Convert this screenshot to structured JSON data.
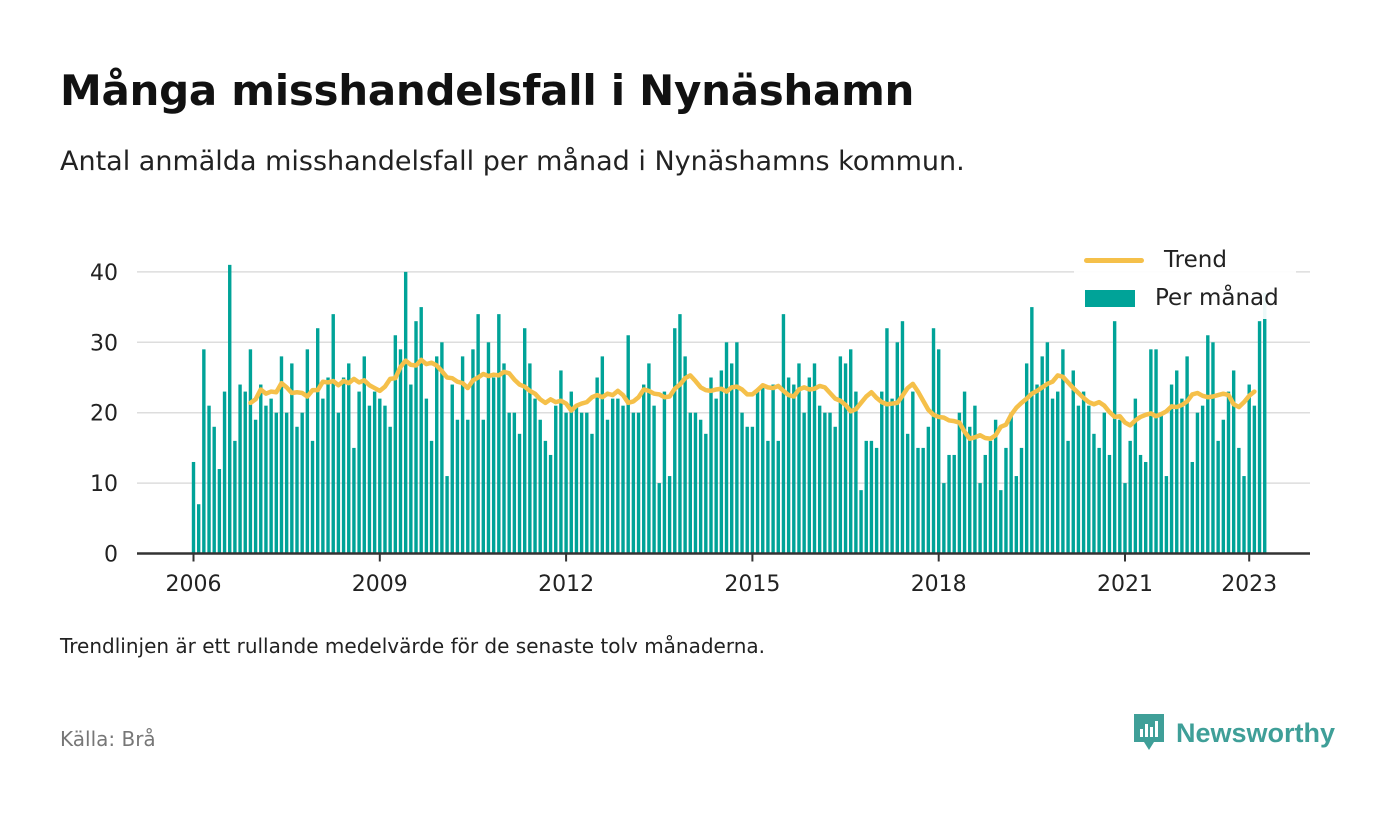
{
  "title": "Många misshandelsfall i Nynäshamn",
  "subtitle": "Antal anmälda misshandelsfall per månad i Nynäshamns kommun.",
  "note": "Trendlinjen är ett rullande medelvärde för de senaste tolv månaderna.",
  "source": "Källa: Brå",
  "brand": "Newsworthy",
  "colors": {
    "bars": "#00a398",
    "trend": "#f5c04a",
    "grid": "#dddddd",
    "axis": "#333333",
    "brand": "#3f9f98"
  },
  "legend": {
    "trend": "Trend",
    "bars": "Per månad",
    "position": "top-right"
  },
  "chart_data": {
    "type": "bar",
    "start": "2006-01",
    "x_ticks": [
      "2006",
      "2009",
      "2012",
      "2015",
      "2018",
      "2021",
      "2023"
    ],
    "y_ticks": [
      0,
      10,
      20,
      30,
      40
    ],
    "ylim": [
      0,
      44
    ],
    "grid": true,
    "series": [
      {
        "name": "Per månad",
        "kind": "bar",
        "values": [
          13,
          7,
          29,
          21,
          18,
          12,
          23,
          41,
          16,
          24,
          23,
          29,
          19,
          24,
          21,
          22,
          20,
          28,
          20,
          27,
          18,
          20,
          29,
          16,
          32,
          22,
          25,
          34,
          20,
          25,
          27,
          15,
          23,
          28,
          21,
          23,
          22,
          21,
          18,
          31,
          29,
          40,
          24,
          33,
          35,
          22,
          16,
          28,
          30,
          11,
          24,
          19,
          28,
          19,
          29,
          34,
          19,
          30,
          25,
          34,
          27,
          20,
          20,
          17,
          32,
          27,
          22,
          19,
          16,
          14,
          21,
          26,
          20,
          23,
          21,
          20,
          20,
          17,
          25,
          28,
          19,
          22,
          22,
          21,
          31,
          20,
          20,
          24,
          27,
          21,
          10,
          23,
          11,
          32,
          34,
          28,
          20,
          20,
          19,
          17,
          25,
          22,
          26,
          30,
          27,
          30,
          20,
          18,
          18,
          23,
          24,
          16,
          24,
          16,
          34,
          25,
          24,
          27,
          20,
          25,
          27,
          21,
          20,
          20,
          18,
          28,
          27,
          29,
          23,
          9,
          16,
          16,
          15,
          23,
          32,
          22,
          30,
          33,
          17,
          23,
          15,
          15,
          18,
          32,
          29,
          10,
          14,
          14,
          20,
          23,
          18,
          21,
          10,
          14,
          16,
          19,
          9,
          15,
          20,
          11,
          15,
          27,
          35,
          24,
          28,
          30,
          22,
          23,
          29,
          16,
          26,
          21,
          23,
          21,
          17,
          15,
          20,
          14,
          33,
          19,
          10,
          16,
          22,
          14,
          13,
          29,
          29,
          20,
          11,
          24,
          26,
          22,
          28,
          13,
          20,
          21,
          31,
          30,
          16,
          19,
          23,
          26,
          15,
          11,
          24,
          21,
          33,
          37
        ]
      },
      {
        "name": "Trend",
        "kind": "line",
        "values": [
          null,
          null,
          null,
          null,
          null,
          null,
          null,
          null,
          null,
          null,
          null,
          21.4,
          21.9,
          23.3,
          22.7,
          23,
          22.9,
          24.2,
          23.6,
          22.8,
          22.9,
          22.8,
          22.3,
          23.2,
          23.2,
          24.4,
          24.3,
          24.5,
          23.9,
          24.5,
          24.2,
          24.8,
          24.3,
          24.6,
          23.9,
          23.5,
          23.1,
          23.7,
          24.8,
          24.9,
          26.5,
          27.4,
          26.8,
          26.7,
          27.5,
          26.9,
          27.1,
          26.7,
          25.9,
          25,
          24.9,
          24.4,
          24.2,
          23.5,
          24.6,
          25,
          25.5,
          25.2,
          25.4,
          25.3,
          25.8,
          25.6,
          24.7,
          24,
          23.7,
          23.1,
          22.7,
          21.9,
          21.4,
          21.9,
          21.5,
          21.7,
          21.3,
          20.3,
          21,
          21.3,
          21.5,
          22.2,
          22.5,
          22.2,
          22.7,
          22.5,
          23.1,
          22.5,
          21.4,
          21.6,
          22.2,
          23.3,
          23.1,
          22.7,
          22.6,
          22.2,
          22.3,
          23.4,
          24,
          24.9,
          25.3,
          24.5,
          23.6,
          23.2,
          23.1,
          23.3,
          23.4,
          23,
          23.6,
          23.7,
          23.3,
          22.6,
          22.6,
          23.2,
          23.9,
          23.6,
          23.5,
          23.8,
          23.1,
          22.5,
          22.3,
          23.3,
          23.6,
          23.3,
          23.4,
          23.8,
          23.6,
          22.8,
          22,
          21.7,
          21.1,
          20.2,
          20.5,
          21.4,
          22.3,
          22.9,
          22.1,
          21.5,
          21.2,
          21.3,
          21.4,
          22.4,
          23.5,
          24.1,
          23,
          21.7,
          20.4,
          19.7,
          19.4,
          19.3,
          18.9,
          18.8,
          18.6,
          17.3,
          16.3,
          16.5,
          16.8,
          16.4,
          16.3,
          16.8,
          18,
          18.3,
          19.7,
          20.7,
          21.4,
          22,
          22.7,
          23.1,
          23.6,
          24.1,
          24.4,
          25.3,
          25.1,
          24.3,
          23.5,
          22.8,
          22.1,
          21.5,
          21.2,
          21.5,
          21,
          20.1,
          19.4,
          19.5,
          18.6,
          18.2,
          18.9,
          19.4,
          19.7,
          19.9,
          19.5,
          19.8,
          20.2,
          20.9,
          20.8,
          21.1,
          21.6,
          22.6,
          22.8,
          22.4,
          22.2,
          22.3,
          22.5,
          22.7,
          22.5,
          21.2,
          20.8,
          21.5,
          22.4,
          23
        ]
      }
    ]
  }
}
